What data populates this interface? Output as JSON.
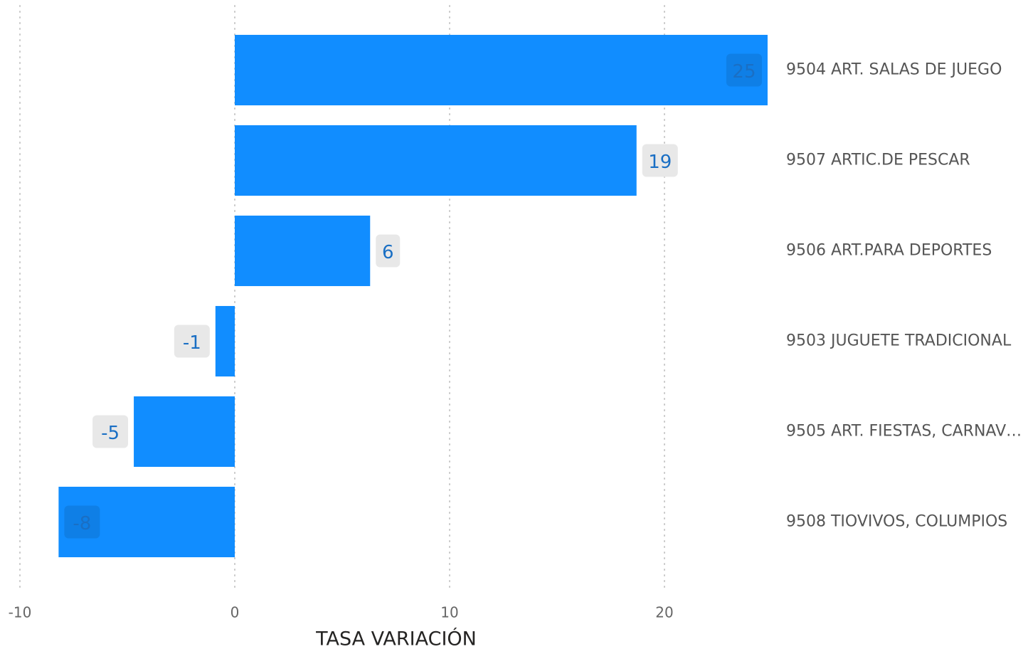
{
  "chart_data": {
    "type": "bar",
    "orientation": "horizontal",
    "x_label": "TASA VARIACIÓN",
    "categories": [
      "9504 ART. SALAS DE JUEGO",
      "9507 ARTIC.DE PESCAR",
      "9506 ART.PARA DEPORTES",
      "9503 JUGUETE TRADICIONAL",
      "9505 ART. FIESTAS, CARNAV…",
      "9508 TIOVIVOS, COLUMPIOS"
    ],
    "values": [
      24.8,
      18.7,
      6.3,
      -0.9,
      -4.7,
      -8.2
    ],
    "value_labels": [
      "25",
      "19",
      "6",
      "-1",
      "-5",
      "-8"
    ],
    "color": "#118dff",
    "xlim": [
      -10,
      25
    ],
    "xticks": [
      -10,
      0,
      10,
      20
    ],
    "grid": true
  }
}
